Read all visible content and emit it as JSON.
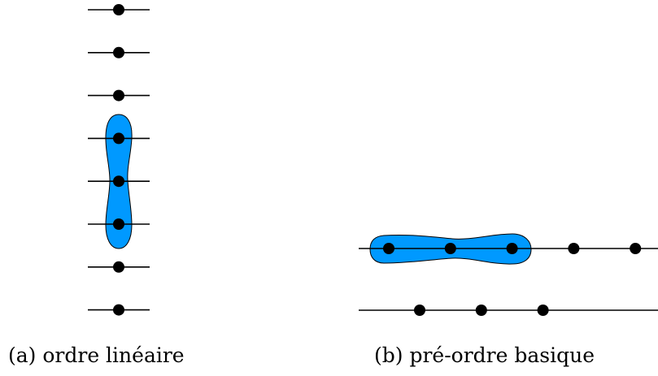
{
  "colors": {
    "highlight_fill": "#0099ff",
    "stroke": "#000000",
    "node": "#000000"
  },
  "panels": [
    {
      "id": "a",
      "caption": "(a) ordre linéaire",
      "levels": 8,
      "highlighted_nodes": 3
    },
    {
      "id": "b",
      "caption": "(b) pré-ordre basique",
      "rows": [
        {
          "nodes": 5,
          "highlighted_nodes": 3
        },
        {
          "nodes": 3,
          "highlighted_nodes": 0
        }
      ]
    }
  ]
}
